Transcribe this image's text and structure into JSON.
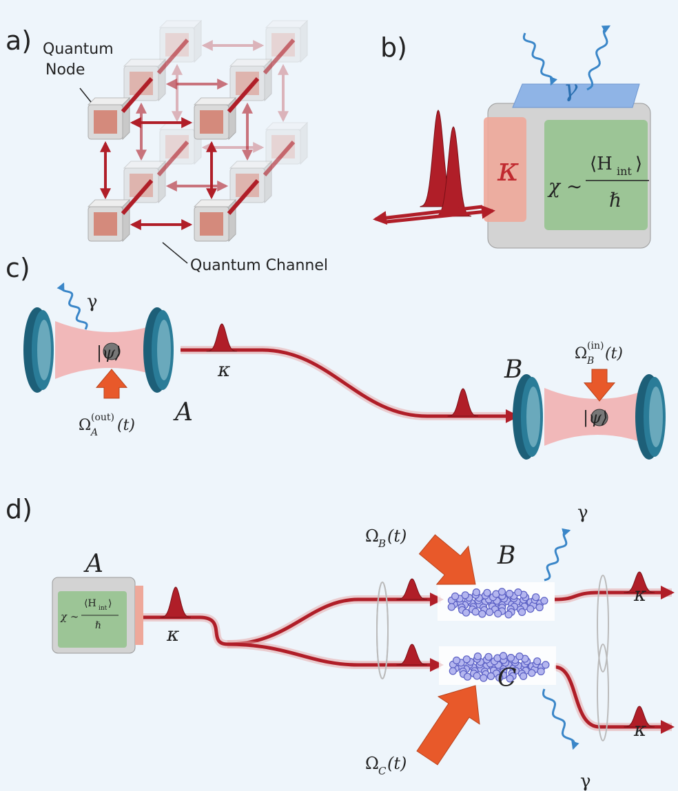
{
  "panels": {
    "a": {
      "label": "a)",
      "node_label": [
        "Quantum",
        "Node"
      ],
      "channel_label": "Quantum Channel"
    },
    "b": {
      "label": "b)",
      "loss_rate": "γ",
      "coupling": "κ",
      "interaction": {
        "lhs": "χ ∼",
        "numerator": "⟨H",
        "numerator_sub": "int",
        "numerator_close": "⟩",
        "denominator": "ℏ"
      }
    },
    "c": {
      "label": "c)",
      "loss_rate": "γ",
      "state_a": "|ψ⟩",
      "state_b": "|ψ⟩",
      "coupling": "κ",
      "node_a": "A",
      "node_b": "B",
      "drive_a": {
        "symbol": "Ω",
        "sub": "A",
        "sup": "(out)",
        "arg": "(t)"
      },
      "drive_b": {
        "symbol": "Ω",
        "sub": "B",
        "sup": "(in)",
        "arg": "(t)"
      }
    },
    "d": {
      "label": "d)",
      "node_a": "A",
      "interaction": {
        "lhs": "χ ∼",
        "numerator": "⟨H",
        "numerator_sub": "int",
        "numerator_close": "⟩",
        "denominator": "ℏ"
      },
      "coupling_in": "κ",
      "node_b": "B",
      "node_c": "C",
      "drive_b": {
        "symbol": "Ω",
        "sub": "B",
        "arg": "(t)"
      },
      "drive_c": {
        "symbol": "Ω",
        "sub": "C",
        "arg": "(t)"
      },
      "loss_b": "γ",
      "loss_c": "γ",
      "coupling_b": "κ",
      "coupling_c": "κ"
    }
  }
}
